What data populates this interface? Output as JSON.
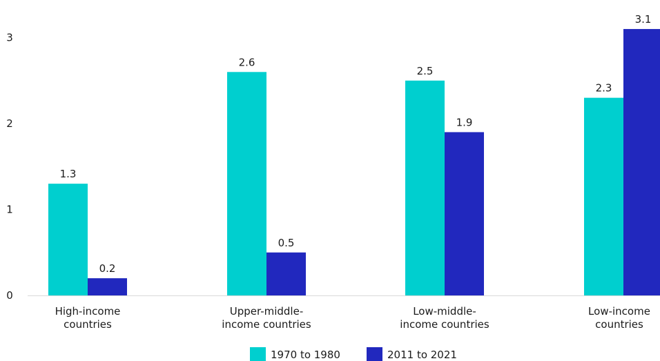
{
  "chart_data": {
    "type": "bar",
    "categories": [
      [
        "High-income",
        "countries"
      ],
      [
        "Upper-middle-",
        "income countries"
      ],
      [
        "Low-middle-",
        "income countries"
      ],
      [
        "Low-income",
        "countries"
      ]
    ],
    "series": [
      {
        "name": "1970 to 1980",
        "color": "#00CFCF",
        "values": [
          1.3,
          2.6,
          2.5,
          2.3
        ],
        "labels": [
          "1.3",
          "2.6",
          "2.5",
          "2.3"
        ]
      },
      {
        "name": "2011 to 2021",
        "color": "#2128BE",
        "values": [
          0.2,
          0.5,
          1.9,
          3.1
        ],
        "labels": [
          "0.2",
          "0.5",
          "1.9",
          "3.1"
        ]
      }
    ],
    "yticks": [
      0,
      1,
      2,
      3
    ],
    "ytick_labels": [
      "0",
      "1",
      "2",
      "3"
    ],
    "ylim": [
      0,
      3.1
    ],
    "grid": false,
    "legend_position": "bottom-center",
    "title": "",
    "xlabel": "",
    "ylabel": ""
  }
}
